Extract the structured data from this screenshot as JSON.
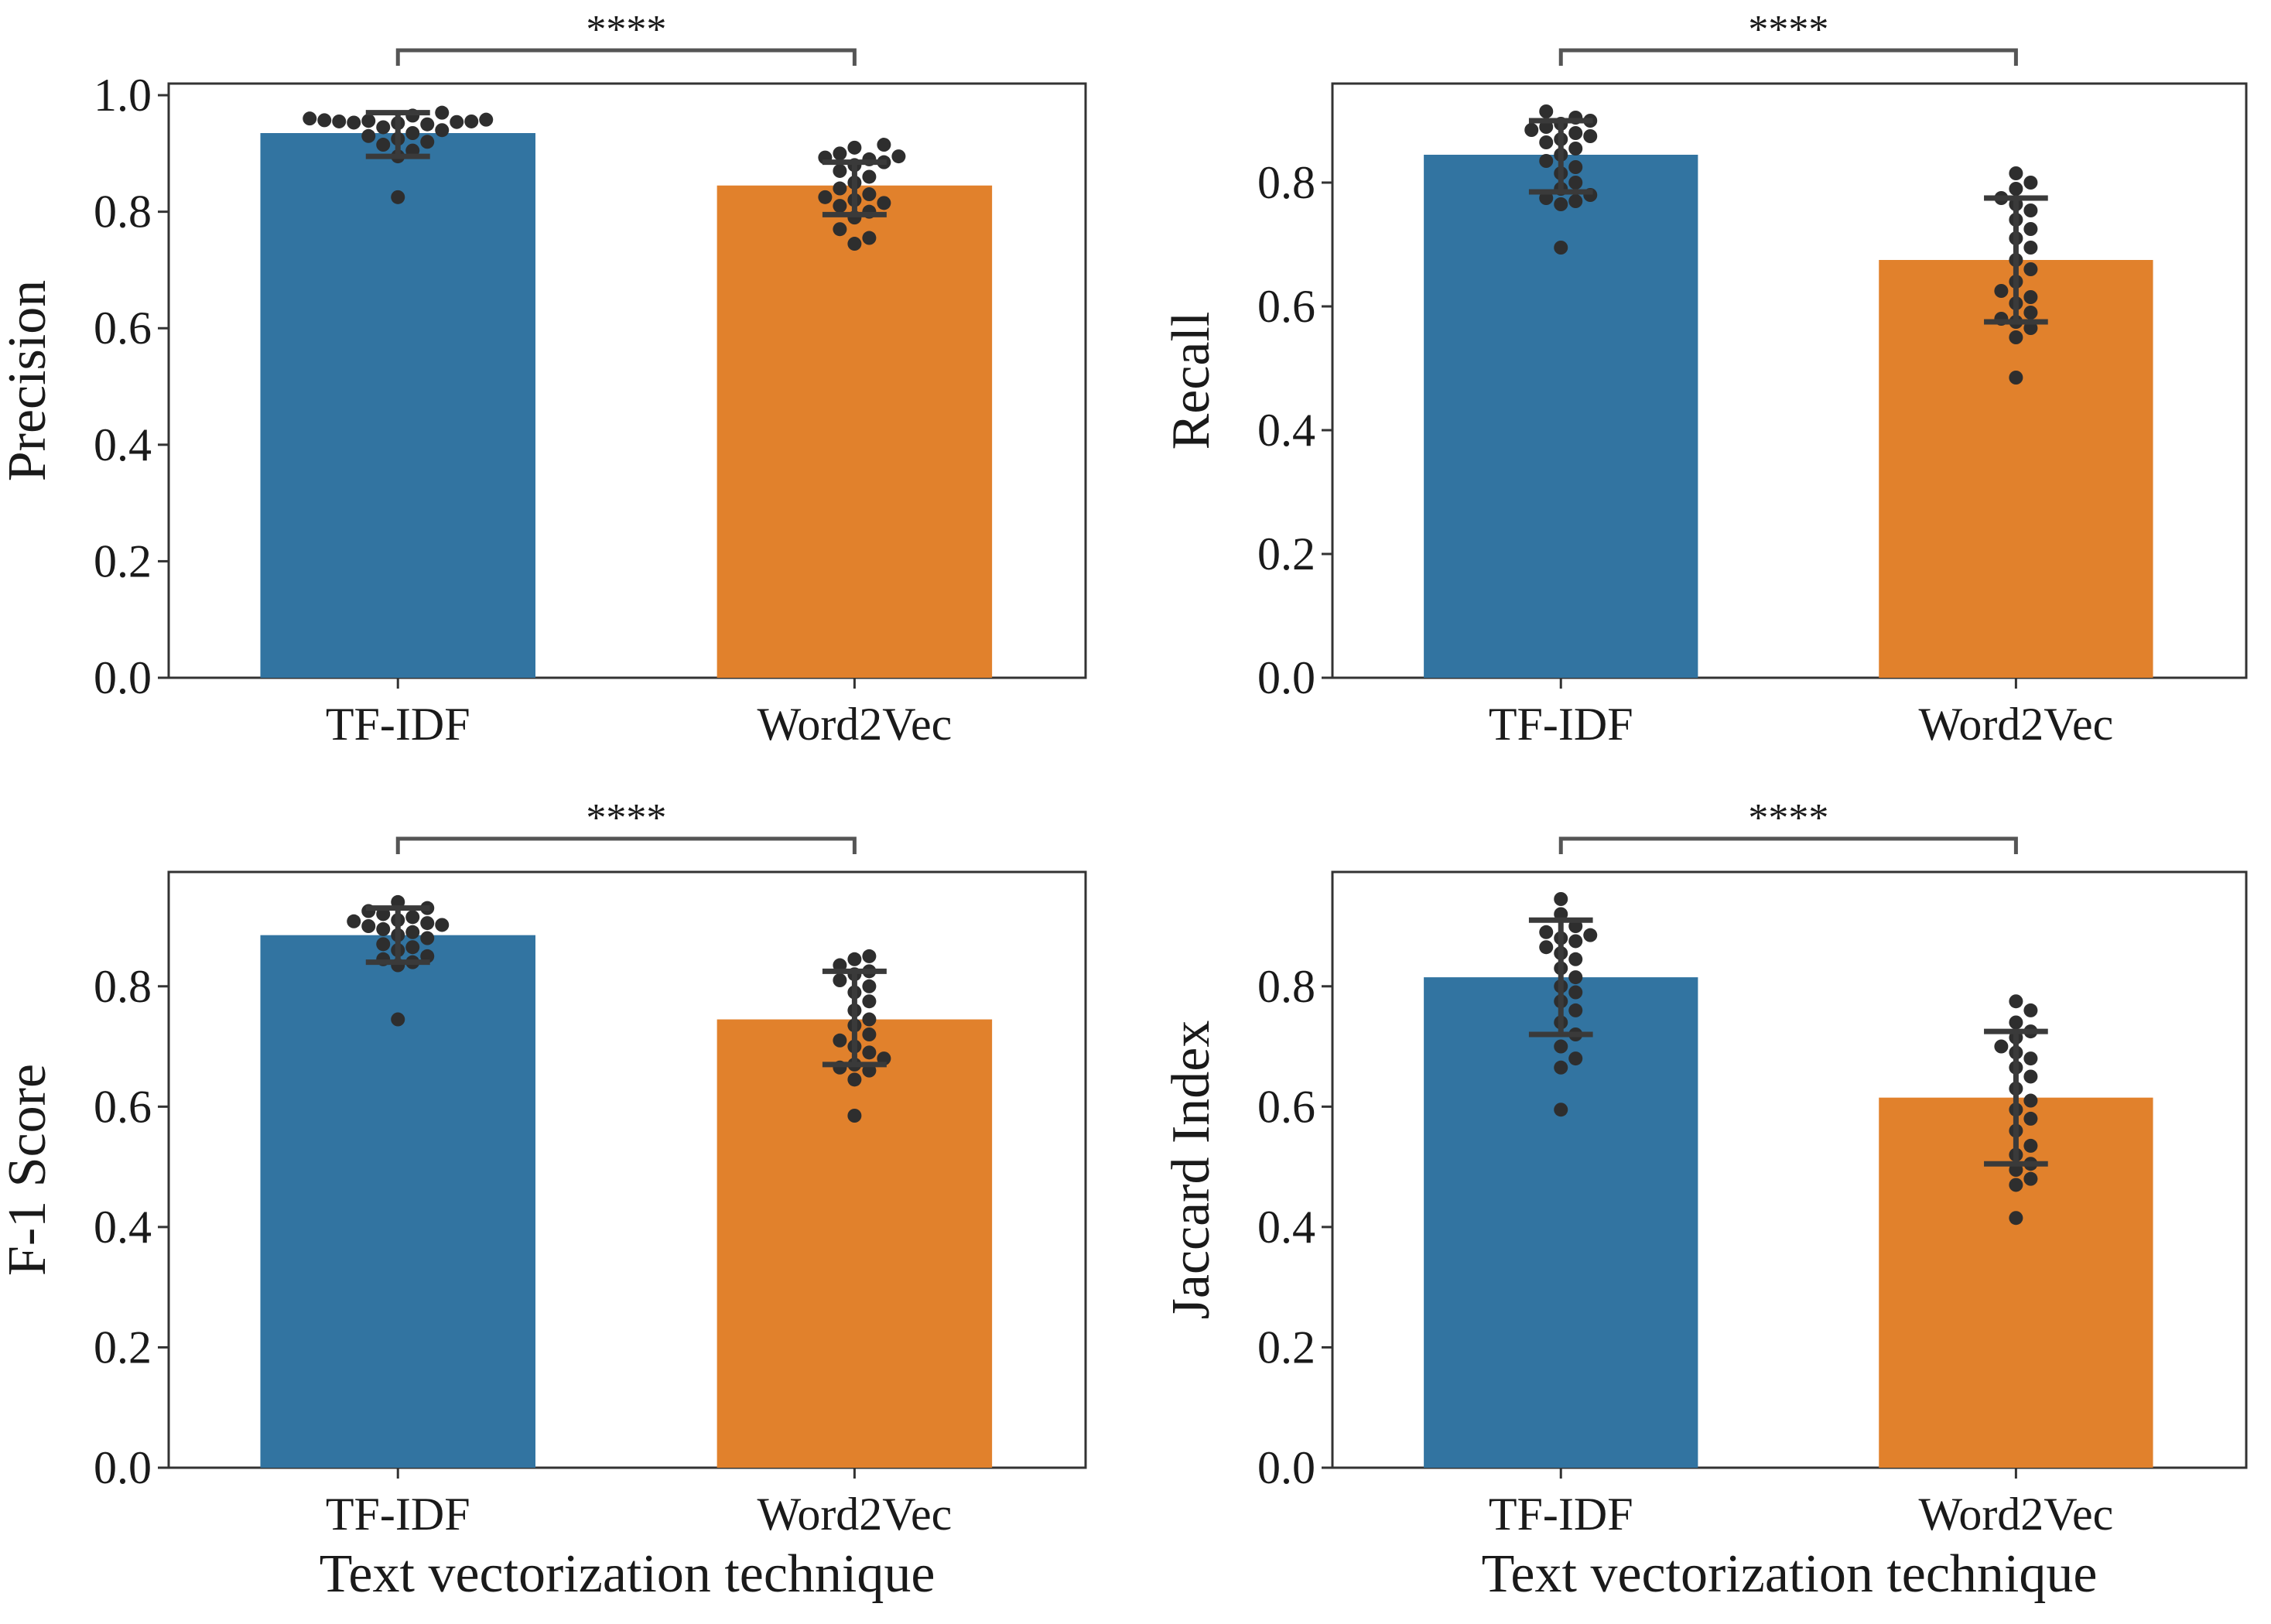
{
  "chart_data": [
    {
      "type": "bar",
      "panel": "top-left",
      "categories": [
        "TF-IDF",
        "Word2Vec"
      ],
      "values": [
        0.935,
        0.845
      ],
      "errors": [
        [
          0.895,
          0.97
        ],
        [
          0.795,
          0.885
        ]
      ],
      "points": [
        [
          0.825,
          0.895,
          0.905,
          0.915,
          0.92,
          0.925,
          0.93,
          0.935,
          0.94,
          0.945,
          0.95,
          0.952,
          0.953,
          0.954,
          0.955,
          0.955,
          0.956,
          0.957,
          0.958,
          0.96,
          0.965,
          0.97
        ],
        [
          0.745,
          0.755,
          0.77,
          0.79,
          0.8,
          0.81,
          0.815,
          0.82,
          0.825,
          0.83,
          0.84,
          0.85,
          0.86,
          0.87,
          0.88,
          0.885,
          0.89,
          0.893,
          0.895,
          0.9,
          0.91,
          0.915
        ]
      ],
      "colors": [
        "#3274a1",
        "#e1812c"
      ],
      "ylabel": "Precision",
      "xlabel": "",
      "ylim": [
        0,
        1.02
      ],
      "yticks": [
        "0.0",
        "0.2",
        "0.4",
        "0.6",
        "0.8",
        "1.0"
      ],
      "significance": "****"
    },
    {
      "type": "bar",
      "panel": "top-right",
      "categories": [
        "TF-IDF",
        "Word2Vec"
      ],
      "values": [
        0.845,
        0.675
      ],
      "errors": [
        [
          0.785,
          0.9
        ],
        [
          0.575,
          0.775
        ]
      ],
      "points": [
        [
          0.695,
          0.765,
          0.77,
          0.775,
          0.78,
          0.79,
          0.8,
          0.815,
          0.825,
          0.835,
          0.845,
          0.855,
          0.865,
          0.87,
          0.875,
          0.88,
          0.885,
          0.89,
          0.895,
          0.9,
          0.905,
          0.915
        ],
        [
          0.485,
          0.55,
          0.565,
          0.575,
          0.58,
          0.59,
          0.605,
          0.615,
          0.625,
          0.64,
          0.66,
          0.675,
          0.695,
          0.71,
          0.725,
          0.74,
          0.755,
          0.765,
          0.775,
          0.79,
          0.8,
          0.815
        ]
      ],
      "colors": [
        "#3274a1",
        "#e1812c"
      ],
      "ylabel": "Recall",
      "xlabel": "",
      "ylim": [
        0,
        0.96
      ],
      "yticks": [
        "0.0",
        "0.2",
        "0.4",
        "0.6",
        "0.8"
      ],
      "significance": "****"
    },
    {
      "type": "bar",
      "panel": "bottom-left",
      "categories": [
        "TF-IDF",
        "Word2Vec"
      ],
      "values": [
        0.885,
        0.745
      ],
      "errors": [
        [
          0.84,
          0.93
        ],
        [
          0.67,
          0.825
        ]
      ],
      "points": [
        [
          0.745,
          0.835,
          0.84,
          0.845,
          0.85,
          0.86,
          0.865,
          0.87,
          0.88,
          0.885,
          0.89,
          0.895,
          0.9,
          0.902,
          0.905,
          0.908,
          0.91,
          0.915,
          0.92,
          0.925,
          0.93,
          0.94
        ],
        [
          0.585,
          0.645,
          0.66,
          0.665,
          0.67,
          0.68,
          0.69,
          0.7,
          0.71,
          0.72,
          0.735,
          0.745,
          0.76,
          0.775,
          0.79,
          0.8,
          0.81,
          0.82,
          0.825,
          0.835,
          0.845,
          0.85
        ]
      ],
      "colors": [
        "#3274a1",
        "#e1812c"
      ],
      "ylabel": "F-1 Score",
      "xlabel": "Text vectorization technique",
      "ylim": [
        0,
        0.99
      ],
      "yticks": [
        "0.0",
        "0.2",
        "0.4",
        "0.6",
        "0.8"
      ],
      "significance": "****"
    },
    {
      "type": "bar",
      "panel": "bottom-right",
      "categories": [
        "TF-IDF",
        "Word2Vec"
      ],
      "values": [
        0.815,
        0.615
      ],
      "errors": [
        [
          0.72,
          0.91
        ],
        [
          0.505,
          0.725
        ]
      ],
      "points": [
        [
          0.595,
          0.665,
          0.68,
          0.7,
          0.72,
          0.74,
          0.76,
          0.775,
          0.79,
          0.8,
          0.815,
          0.83,
          0.845,
          0.855,
          0.865,
          0.875,
          0.88,
          0.885,
          0.89,
          0.9,
          0.92,
          0.945
        ],
        [
          0.415,
          0.47,
          0.48,
          0.495,
          0.505,
          0.52,
          0.535,
          0.56,
          0.58,
          0.595,
          0.61,
          0.63,
          0.65,
          0.665,
          0.68,
          0.69,
          0.7,
          0.715,
          0.725,
          0.74,
          0.76,
          0.775
        ]
      ],
      "colors": [
        "#3274a1",
        "#e1812c"
      ],
      "ylabel": "Jaccard Index",
      "xlabel": "Text vectorization technique",
      "ylim": [
        0,
        0.99
      ],
      "yticks": [
        "0.0",
        "0.2",
        "0.4",
        "0.6",
        "0.8"
      ],
      "significance": "****"
    }
  ]
}
